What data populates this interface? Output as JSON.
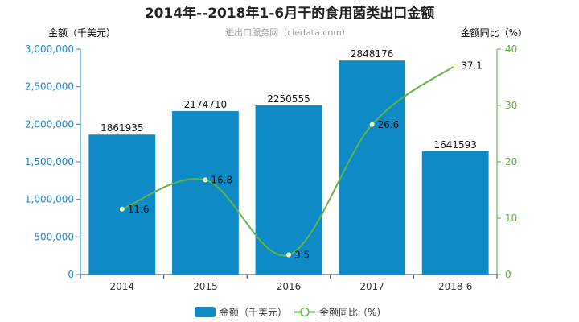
{
  "chart_data": {
    "type": "bar",
    "title": "2014年--2018年1-6月干的食用菌类出口金额",
    "subtitle": "进出口服务网（ciedata.com）",
    "categories": [
      "2014",
      "2015",
      "2016",
      "2017",
      "2018-6"
    ],
    "ylabel_left": "金额（千美元）",
    "ylabel_right": "金额同比（%）",
    "ylim_left": [
      0,
      3000000
    ],
    "yticks_left": [
      0,
      500000,
      1000000,
      1500000,
      2000000,
      2500000,
      3000000
    ],
    "ytick_labels_left": [
      "0",
      "500,000",
      "1,000,000",
      "1,500,000",
      "2,000,000",
      "2,500,000",
      "3,000,000"
    ],
    "ylim_right": [
      0,
      40
    ],
    "yticks_right": [
      0,
      10,
      20,
      30,
      40
    ],
    "ytick_labels_right": [
      "0",
      "10",
      "20",
      "30",
      "40"
    ],
    "series": [
      {
        "name": "金额（千美元）",
        "type": "bar",
        "axis": "left",
        "values": [
          1861935,
          2174710,
          2250555,
          2848176,
          1641593
        ],
        "labels": [
          "1861935",
          "2174710",
          "2250555",
          "2848176",
          "1641593"
        ]
      },
      {
        "name": "金额同比（%）",
        "type": "line",
        "axis": "right",
        "values": [
          11.6,
          16.8,
          3.5,
          26.6,
          37.1
        ],
        "labels": [
          "11.6",
          "16.8",
          "3.5",
          "26.6",
          "37.1"
        ]
      }
    ],
    "legend_position": "bottom-center",
    "grid": false,
    "colors": {
      "bar": "#0e8ac7",
      "line": "#62b446",
      "left_axis": "#1a86c2",
      "right_axis": "#5aab3a"
    }
  }
}
